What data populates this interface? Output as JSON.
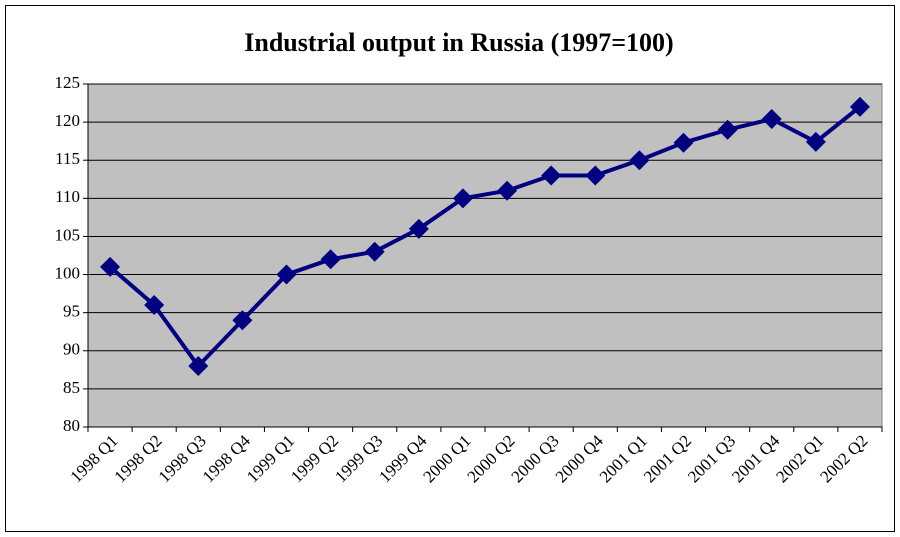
{
  "chart_data": {
    "type": "line",
    "title": "Industrial output in Russia (1997=100)",
    "categories": [
      "1998 Q1",
      "1998 Q2",
      "1998 Q3",
      "1998 Q4",
      "1999 Q1",
      "1999 Q2",
      "1999 Q3",
      "1999 Q4",
      "2000 Q1",
      "2000 Q2",
      "2000 Q3",
      "2000 Q4",
      "2001 Q1",
      "2001 Q2",
      "2001 Q3",
      "2001 Q4",
      "2002 Q1",
      "2002 Q2"
    ],
    "values": [
      101,
      96,
      88,
      94,
      100,
      102,
      103,
      106,
      110,
      111,
      113,
      113,
      115,
      117.3,
      119,
      120.4,
      117.4,
      122
    ],
    "color": "#000080",
    "ylim": [
      80,
      125
    ],
    "yticks": [
      80,
      85,
      90,
      95,
      100,
      105,
      110,
      115,
      120,
      125
    ],
    "grid": true
  }
}
